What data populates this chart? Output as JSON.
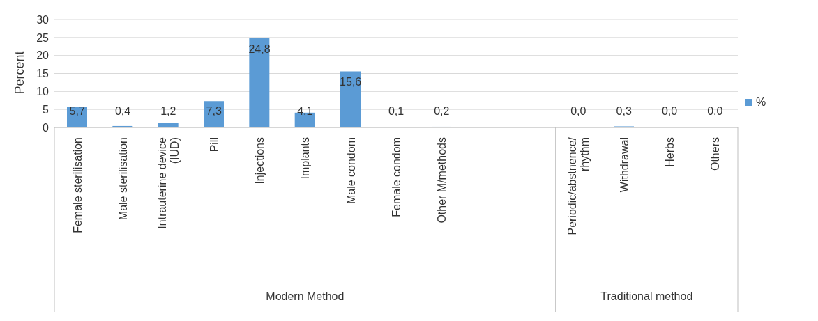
{
  "chart_data": {
    "type": "bar",
    "ylabel": "Percent",
    "categories": [
      "Female sterilisation",
      "Male sterilisation",
      "Intrauterine device (IUD)",
      "Pill",
      "Injections",
      "Implants",
      "Male condom",
      "Female condom",
      "Other M/methods",
      null,
      null,
      "Periodic/abstnence/rhythm",
      "Withdrawal",
      "Herbs",
      "Others"
    ],
    "series": [
      {
        "name": "%",
        "color": "#5b9bd5",
        "values": [
          5.7,
          0.4,
          1.2,
          7.3,
          24.8,
          4.1,
          15.6,
          0.1,
          0.2,
          null,
          null,
          0.0,
          0.3,
          0.0,
          0.0
        ],
        "value_labels": [
          "5,7",
          "0,4",
          "1,2",
          "7,3",
          "24,8",
          "4,1",
          "15,6",
          "0,1",
          "0,2",
          null,
          null,
          "0,0",
          "0,3",
          "0,0",
          "0,0"
        ]
      }
    ],
    "annotations": [
      "Modern Method",
      "Traditional method"
    ],
    "ylim": [
      0,
      30
    ],
    "yticks": [
      0,
      5,
      10,
      15,
      20,
      25,
      30
    ],
    "grid": "y",
    "legend": "right"
  }
}
